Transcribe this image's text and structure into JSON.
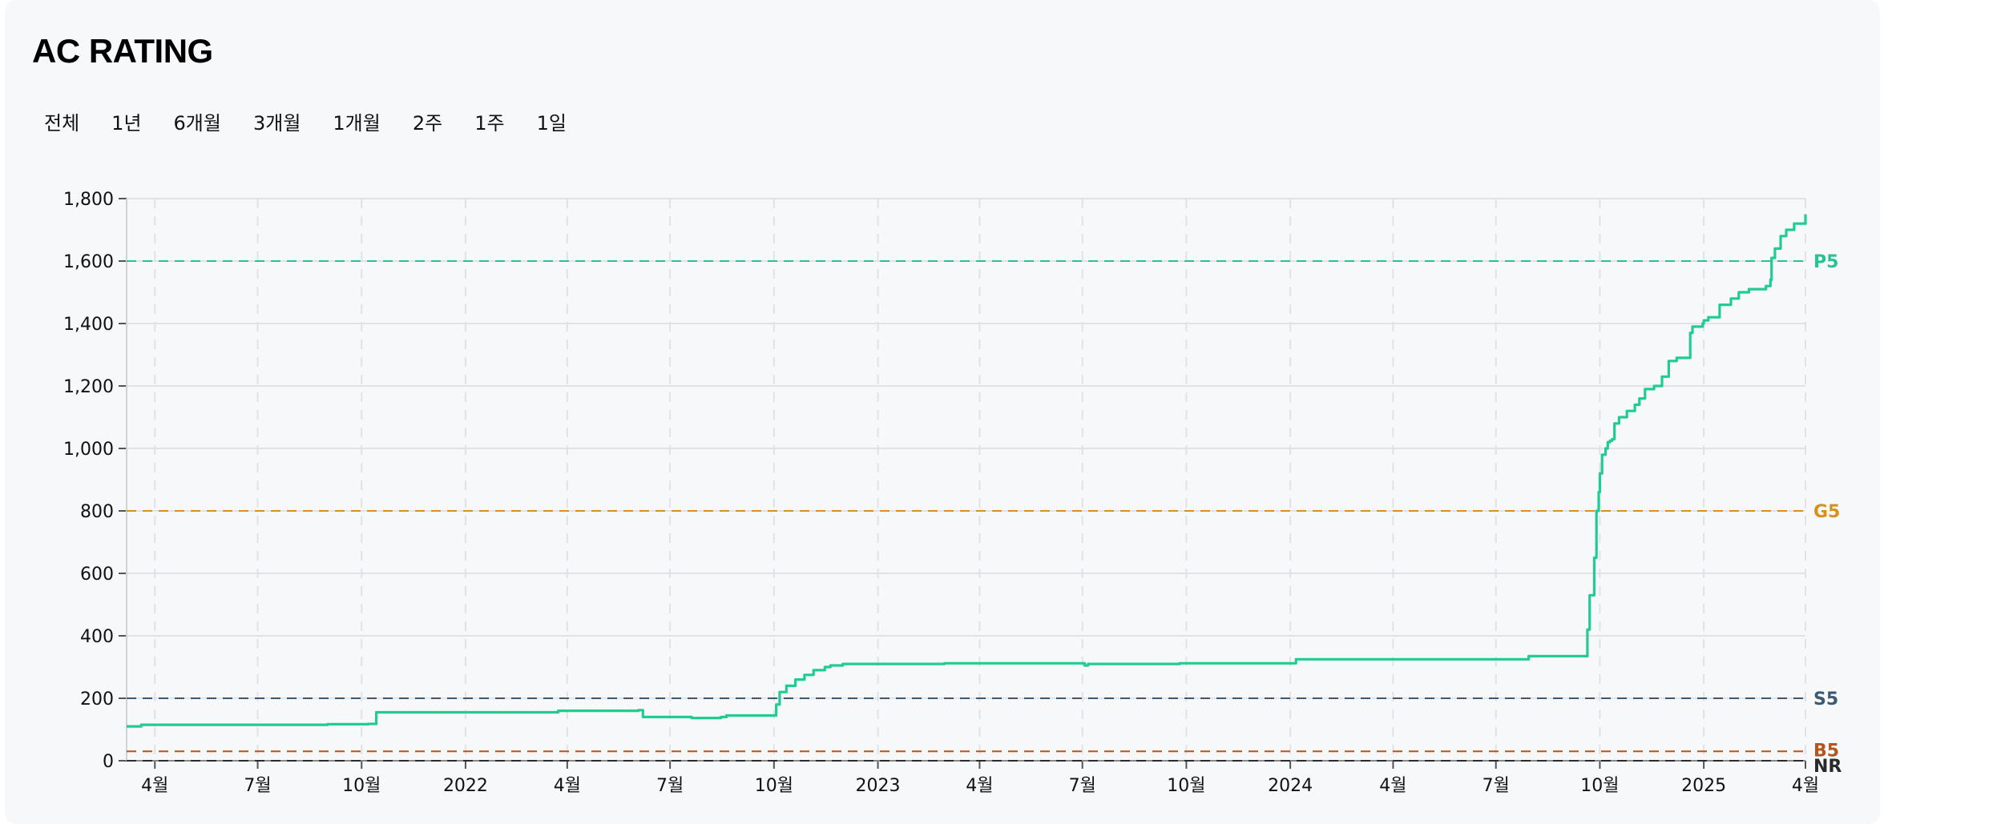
{
  "page": {
    "title": "AC RATING"
  },
  "ranges": [
    "전체",
    "1년",
    "6개월",
    "3개월",
    "1개월",
    "2주",
    "1주",
    "1일"
  ],
  "colors": {
    "line": "#20cc90",
    "P5": "#27c393",
    "G5": "#d9901c",
    "S5": "#3d5a73",
    "B5": "#b6541b",
    "NR": "#2a2a2a",
    "grid": "#dfe2e6"
  },
  "chart_data": {
    "type": "line",
    "title": "AC RATING",
    "xlabel": "",
    "ylabel": "",
    "ylim": [
      0,
      1800
    ],
    "xlim": [
      "2021-03-07",
      "2025-04-01"
    ],
    "grid": true,
    "y_ticks": [
      0,
      200,
      400,
      600,
      800,
      1000,
      1200,
      1400,
      1600,
      1800
    ],
    "y_tick_labels": [
      "0",
      "200",
      "400",
      "600",
      "800",
      "1,000",
      "1,200",
      "1,400",
      "1,600",
      "1,800"
    ],
    "x_ticks": [
      {
        "date": "2021-04-01",
        "label": "4월"
      },
      {
        "date": "2021-07-01",
        "label": "7월"
      },
      {
        "date": "2021-10-01",
        "label": "10월"
      },
      {
        "date": "2022-01-01",
        "label": "2022"
      },
      {
        "date": "2022-04-01",
        "label": "4월"
      },
      {
        "date": "2022-07-01",
        "label": "7월"
      },
      {
        "date": "2022-10-01",
        "label": "10월"
      },
      {
        "date": "2023-01-01",
        "label": "2023"
      },
      {
        "date": "2023-04-01",
        "label": "4월"
      },
      {
        "date": "2023-07-01",
        "label": "7월"
      },
      {
        "date": "2023-10-01",
        "label": "10월"
      },
      {
        "date": "2024-01-01",
        "label": "2024"
      },
      {
        "date": "2024-04-01",
        "label": "4월"
      },
      {
        "date": "2024-07-01",
        "label": "7월"
      },
      {
        "date": "2024-10-01",
        "label": "10월"
      },
      {
        "date": "2025-01-01",
        "label": "2025"
      },
      {
        "date": "2025-04-01",
        "label": "4월"
      }
    ],
    "thresholds": [
      {
        "name": "P5",
        "value": 1600
      },
      {
        "name": "G5",
        "value": 800
      },
      {
        "name": "S5",
        "value": 200
      },
      {
        "name": "B5",
        "value": 30
      },
      {
        "name": "NR",
        "value": 0
      }
    ],
    "series": [
      {
        "x": [
          "2021-03-07",
          "2021-03-20",
          "2021-09-01",
          "2021-10-07",
          "2021-10-14",
          "2022-03-20",
          "2022-03-24",
          "2022-06-03",
          "2022-06-07",
          "2022-07-15",
          "2022-07-20",
          "2022-08-15",
          "2022-08-20",
          "2022-09-29",
          "2022-10-03",
          "2022-10-06",
          "2022-10-12",
          "2022-10-20",
          "2022-10-28",
          "2022-11-05",
          "2022-11-15",
          "2022-11-20",
          "2022-12-01",
          "2022-12-10",
          "2023-03-01",
          "2023-06-28",
          "2023-07-03",
          "2023-07-06",
          "2023-09-15",
          "2023-09-25",
          "2024-01-01",
          "2024-01-06",
          "2024-07-01",
          "2024-07-25",
          "2024-07-30",
          "2024-09-18",
          "2024-09-20",
          "2024-09-22",
          "2024-09-26",
          "2024-09-28",
          "2024-09-30",
          "2024-10-01",
          "2024-10-03",
          "2024-10-06",
          "2024-10-08",
          "2024-10-10",
          "2024-10-12",
          "2024-10-14",
          "2024-10-18",
          "2024-10-25",
          "2024-11-01",
          "2024-11-05",
          "2024-11-10",
          "2024-11-18",
          "2024-11-25",
          "2024-12-01",
          "2024-12-08",
          "2024-12-15",
          "2024-12-20",
          "2024-12-22",
          "2024-12-31",
          "2025-01-01",
          "2025-01-05",
          "2025-01-15",
          "2025-01-25",
          "2025-02-01",
          "2025-02-10",
          "2025-02-25",
          "2025-03-01",
          "2025-03-02",
          "2025-03-05",
          "2025-03-10",
          "2025-03-15",
          "2025-03-22",
          "2025-04-01"
        ],
        "y": [
          110,
          115,
          117,
          118,
          155,
          155,
          160,
          162,
          140,
          140,
          137,
          140,
          145,
          145,
          180,
          220,
          240,
          260,
          275,
          290,
          300,
          305,
          310,
          310,
          312,
          312,
          305,
          310,
          310,
          312,
          312,
          325,
          325,
          325,
          335,
          335,
          420,
          530,
          650,
          800,
          860,
          920,
          980,
          1000,
          1020,
          1025,
          1030,
          1080,
          1100,
          1120,
          1140,
          1160,
          1190,
          1200,
          1230,
          1280,
          1290,
          1290,
          1370,
          1390,
          1400,
          1410,
          1420,
          1460,
          1480,
          1500,
          1510,
          1520,
          1540,
          1610,
          1640,
          1680,
          1700,
          1720,
          1750
        ]
      }
    ]
  }
}
